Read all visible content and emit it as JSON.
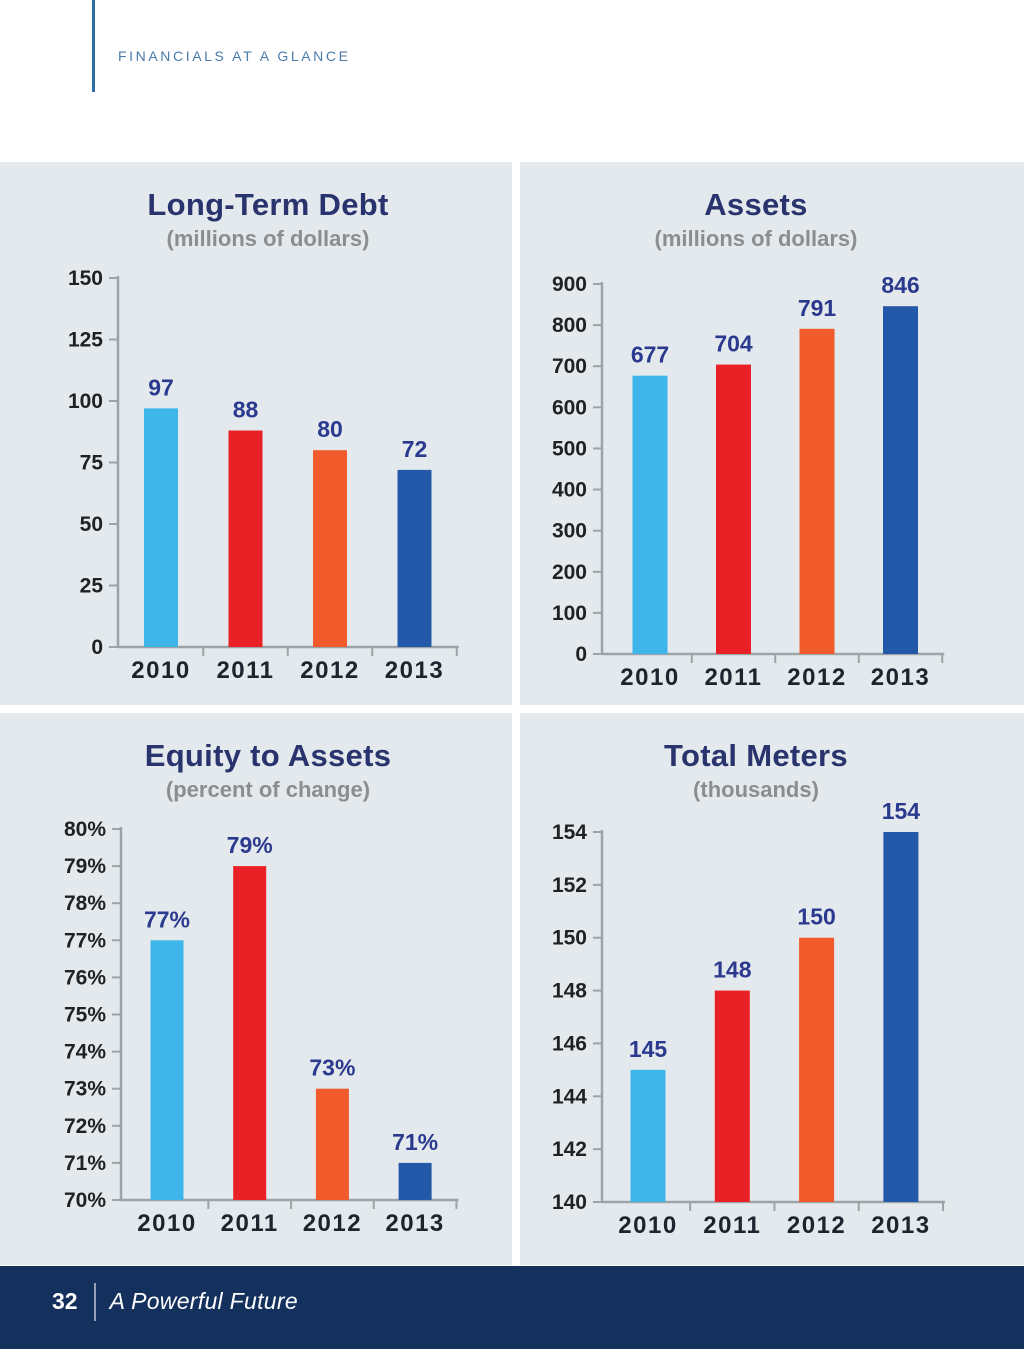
{
  "header": {
    "eyebrow": "FINANCIALS AT A GLANCE"
  },
  "footer": {
    "page_number": "32",
    "tagline": "A Powerful Future"
  },
  "colors": {
    "panel_bg": "#e3e9ec",
    "title_navy": "#29336e",
    "subtitle_gray": "#8b8e91",
    "value_label_navy": "#2b3a8f",
    "tick_label": "#1f2124",
    "year_label": "#1e242e",
    "axis_gray": "#9da3a7",
    "footer_bg": "#14305d",
    "header_blue": "#4a7bab",
    "bar_palette": [
      "#3eb6e9",
      "#e92025",
      "#f15a2b",
      "#2458a8"
    ]
  },
  "chart_data": [
    {
      "type": "bar",
      "title": "Long-Term Debt",
      "subtitle": "(millions of dollars)",
      "categories": [
        "2010",
        "2011",
        "2012",
        "2013"
      ],
      "values": [
        97,
        88,
        80,
        72
      ],
      "value_labels": [
        "97",
        "88",
        "80",
        "72"
      ],
      "ylim": [
        0,
        150
      ],
      "yticks": [
        {
          "v": 150,
          "label": "150"
        },
        {
          "v": 125,
          "label": "125"
        },
        {
          "v": 100,
          "label": "100"
        },
        {
          "v": 75,
          "label": "75"
        },
        {
          "v": 50,
          "label": "50"
        },
        {
          "v": 25,
          "label": "25"
        },
        {
          "v": 0,
          "label": "0"
        }
      ],
      "grid": false,
      "legend": "none"
    },
    {
      "type": "bar",
      "title": "Assets",
      "subtitle": "(millions of dollars)",
      "categories": [
        "2010",
        "2011",
        "2012",
        "2013"
      ],
      "values": [
        677,
        704,
        791,
        846
      ],
      "value_labels": [
        "677",
        "704",
        "791",
        "846"
      ],
      "ylim": [
        0,
        900
      ],
      "yticks": [
        {
          "v": 900,
          "label": "900"
        },
        {
          "v": 800,
          "label": "800"
        },
        {
          "v": 700,
          "label": "700"
        },
        {
          "v": 600,
          "label": "600"
        },
        {
          "v": 500,
          "label": "500"
        },
        {
          "v": 400,
          "label": "400"
        },
        {
          "v": 300,
          "label": "300"
        },
        {
          "v": 200,
          "label": "200"
        },
        {
          "v": 100,
          "label": "100"
        },
        {
          "v": 0,
          "label": "0"
        }
      ],
      "grid": false,
      "legend": "none"
    },
    {
      "type": "bar",
      "title": "Equity to Assets",
      "subtitle": "(percent of change)",
      "categories": [
        "2010",
        "2011",
        "2012",
        "2013"
      ],
      "values": [
        77,
        79,
        73,
        71
      ],
      "value_labels": [
        "77%",
        "79%",
        "73%",
        "71%"
      ],
      "ylim": [
        70,
        80
      ],
      "yticks": [
        {
          "v": 80,
          "label": "80%"
        },
        {
          "v": 79,
          "label": "79%"
        },
        {
          "v": 78,
          "label": "78%"
        },
        {
          "v": 77,
          "label": "77%"
        },
        {
          "v": 76,
          "label": "76%"
        },
        {
          "v": 75,
          "label": "75%"
        },
        {
          "v": 74,
          "label": "74%"
        },
        {
          "v": 73,
          "label": "73%"
        },
        {
          "v": 72,
          "label": "72%"
        },
        {
          "v": 71,
          "label": "71%"
        },
        {
          "v": 70,
          "label": "70%"
        }
      ],
      "grid": false,
      "legend": "none"
    },
    {
      "type": "bar",
      "title": "Total Meters",
      "subtitle": "(thousands)",
      "categories": [
        "2010",
        "2011",
        "2012",
        "2013"
      ],
      "values": [
        145,
        148,
        150,
        154
      ],
      "value_labels": [
        "145",
        "148",
        "150",
        "154"
      ],
      "ylim": [
        140,
        154
      ],
      "yticks": [
        {
          "v": 154,
          "label": "154"
        },
        {
          "v": 152,
          "label": "152"
        },
        {
          "v": 150,
          "label": "150"
        },
        {
          "v": 148,
          "label": "148"
        },
        {
          "v": 146,
          "label": "146"
        },
        {
          "v": 144,
          "label": "144"
        },
        {
          "v": 142,
          "label": "142"
        },
        {
          "v": 140,
          "label": "140"
        }
      ],
      "grid": false,
      "legend": "none"
    }
  ]
}
